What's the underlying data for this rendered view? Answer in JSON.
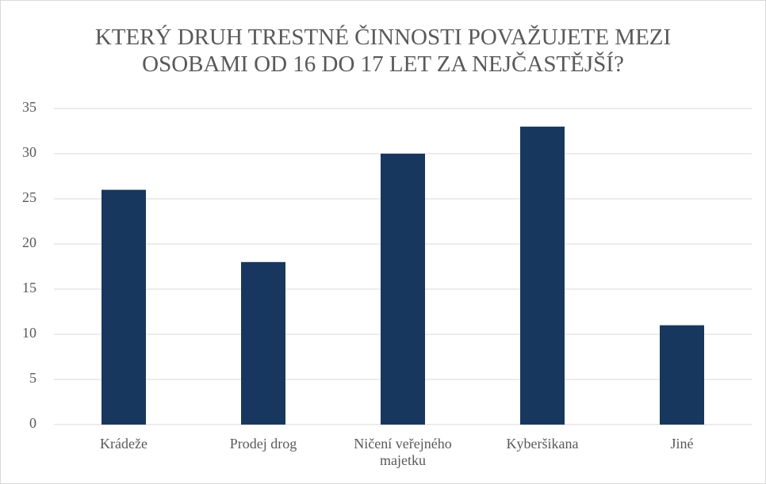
{
  "chart_data": {
    "type": "bar",
    "title": "KTERÝ DRUH TRESTNÉ ČINNOSTI POVAŽUJETE MEZI OSOBAMI OD 16 DO 17 LET ZA NEJČASTĚJŠÍ?",
    "categories": [
      "Krádeže",
      "Prodej drog",
      "Ničení veřejného majetku",
      "Kyberšikana",
      "Jiné"
    ],
    "values": [
      26,
      18,
      30,
      33,
      11
    ],
    "color": "#17375e",
    "ylim": [
      0,
      35
    ],
    "yticks": [
      0,
      5,
      10,
      15,
      20,
      25,
      30,
      35
    ],
    "grid": true
  }
}
